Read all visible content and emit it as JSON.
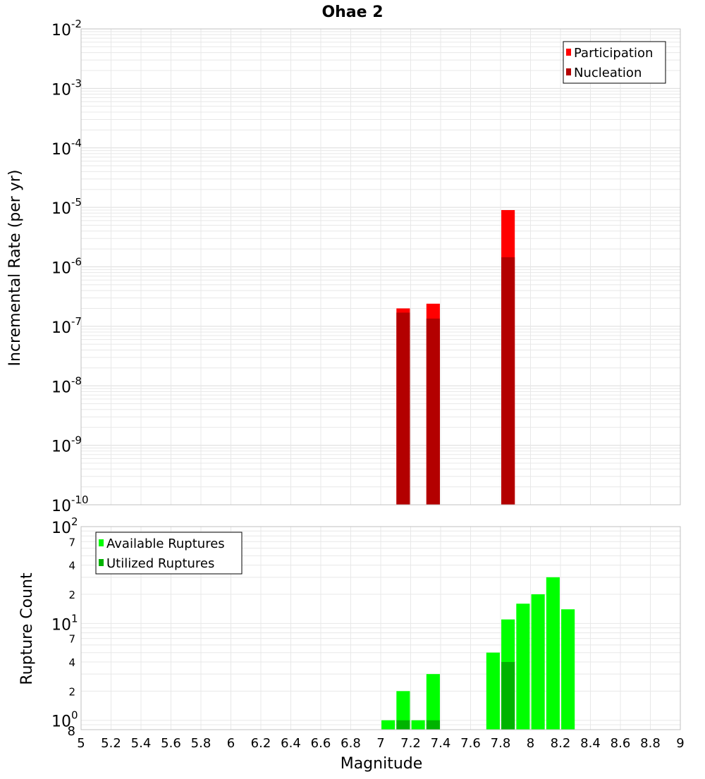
{
  "title": "Ohae 2",
  "colors": {
    "participation": "#ff0000",
    "nucleation": "#b30000",
    "available": "#00ff00",
    "utilized": "#00b300",
    "grid": "#e8e8e8",
    "plot_border": "#c0c0c0"
  },
  "chart_data": [
    {
      "type": "bar",
      "name": "rates",
      "ylabel": "Incremental Rate (per yr)",
      "yscale": "log",
      "ylim": [
        1e-10,
        0.01
      ],
      "xlim": [
        5,
        9
      ],
      "ytick_exponents": [
        "-10",
        "-9",
        "-8",
        "-7",
        "-6",
        "-5",
        "-4",
        "-3",
        "-2"
      ],
      "ytick_base": "10",
      "legend": {
        "position": "top-right",
        "entries": [
          "Participation",
          "Nucleation"
        ]
      },
      "series": [
        {
          "name": "Participation",
          "color_key": "participation",
          "x": [
            7.15,
            7.35,
            7.85
          ],
          "values": [
            2e-07,
            2.4e-07,
            9e-06
          ]
        },
        {
          "name": "Nucleation",
          "color_key": "nucleation",
          "x": [
            7.15,
            7.35,
            7.85
          ],
          "values": [
            1.7e-07,
            1.35e-07,
            1.45e-06
          ]
        }
      ]
    },
    {
      "type": "bar",
      "name": "counts",
      "ylabel": "Rupture Count",
      "xlabel": "Magnitude",
      "yscale": "log",
      "ylim": [
        0.8,
        100
      ],
      "xlim": [
        5,
        9
      ],
      "xticks": [
        "5",
        "5.2",
        "5.4",
        "5.6",
        "5.8",
        "6",
        "6.2",
        "6.4",
        "6.6",
        "6.8",
        "7",
        "7.2",
        "7.4",
        "7.6",
        "7.8",
        "8",
        "8.2",
        "8.4",
        "8.6",
        "8.8",
        "9"
      ],
      "major_ticks": [
        {
          "base": "10",
          "exp": "0"
        },
        {
          "base": "10",
          "exp": "1"
        },
        {
          "base": "10",
          "exp": "2"
        }
      ],
      "minor_ticks": [
        "8",
        "2",
        "4",
        "7",
        "2",
        "4",
        "7"
      ],
      "legend": {
        "position": "top-left",
        "entries": [
          "Available Ruptures",
          "Utilized Ruptures"
        ]
      },
      "series": [
        {
          "name": "Available Ruptures",
          "color_key": "available",
          "x": [
            7.05,
            7.15,
            7.25,
            7.35,
            7.75,
            7.85,
            7.95,
            8.05,
            8.15,
            8.25
          ],
          "values": [
            1,
            2,
            1,
            3,
            5,
            11,
            16,
            20,
            30,
            14
          ]
        },
        {
          "name": "Utilized Ruptures",
          "color_key": "utilized",
          "x": [
            7.15,
            7.35,
            7.85
          ],
          "values": [
            1,
            1,
            4
          ]
        }
      ]
    }
  ]
}
